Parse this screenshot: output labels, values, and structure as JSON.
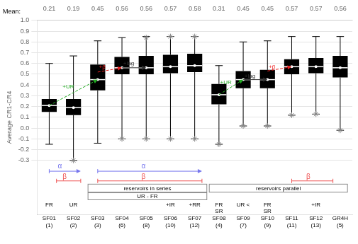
{
  "chart_data": {
    "type": "box",
    "categories": [
      "SF01",
      "SF02",
      "SF03",
      "SF04",
      "SF05",
      "SF06",
      "SF07",
      "SF08",
      "SF09",
      "SF10",
      "SF11",
      "SF12",
      "GR4H"
    ],
    "boxes": [
      {
        "q1": 0.15,
        "med": 0.21,
        "q3": 0.27,
        "whislo": -0.15,
        "whishi": 0.6
      },
      {
        "q1": 0.12,
        "med": 0.19,
        "q3": 0.27,
        "whislo": -0.3,
        "whishi": 0.67
      },
      {
        "q1": 0.35,
        "med": 0.45,
        "q3": 0.59,
        "whislo": -0.14,
        "whishi": 0.81
      },
      {
        "q1": 0.5,
        "med": 0.56,
        "q3": 0.66,
        "whislo": -0.1,
        "whishi": 0.84
      },
      {
        "q1": 0.5,
        "med": 0.56,
        "q3": 0.67,
        "whislo": -0.1,
        "whishi": 0.85
      },
      {
        "q1": 0.51,
        "med": 0.57,
        "q3": 0.68,
        "whislo": -0.1,
        "whishi": 0.85
      },
      {
        "q1": 0.52,
        "med": 0.58,
        "q3": 0.69,
        "whislo": -0.1,
        "whishi": 0.85
      },
      {
        "q1": 0.22,
        "med": 0.31,
        "q3": 0.41,
        "whislo": -0.15,
        "whishi": 0.58
      },
      {
        "q1": 0.37,
        "med": 0.45,
        "q3": 0.53,
        "whislo": 0.02,
        "whishi": 0.8
      },
      {
        "q1": 0.37,
        "med": 0.45,
        "q3": 0.54,
        "whislo": 0.02,
        "whishi": 0.81
      },
      {
        "q1": 0.5,
        "med": 0.57,
        "q3": 0.64,
        "whislo": 0.12,
        "whishi": 0.85
      },
      {
        "q1": 0.51,
        "med": 0.57,
        "q3": 0.65,
        "whislo": 0.13,
        "whishi": 0.85
      },
      {
        "q1": 0.47,
        "med": 0.56,
        "q3": 0.67,
        "whislo": -0.02,
        "whishi": 0.85
      }
    ],
    "color": "#000000",
    "median_color": "#ffffff",
    "whisker_color": "#000000",
    "outliers": {
      "values": [
        [],
        [
          -0.3
        ],
        [],
        [
          -0.1
        ],
        [
          -0.1,
          0.84
        ],
        [
          -0.1,
          0.85
        ],
        [
          -0.1,
          0.85
        ],
        [
          -0.15
        ],
        [
          0.02
        ],
        [
          0.02
        ],
        [
          0.12
        ],
        [
          0.13
        ],
        [
          -0.02
        ]
      ],
      "marker": "star",
      "color": "#888888"
    },
    "ylabel": "Average CR1-CR4",
    "ylim": [
      -0.8,
      1.0
    ],
    "yticks": [
      -0.3,
      -0.2,
      -0.1,
      {
        "value": 0,
        "label": "0.0"
      },
      0.1,
      0.2,
      0.3,
      0.4,
      0.5,
      0.6,
      0.7,
      0.8,
      0.9,
      {
        "value": 1,
        "label": "1.0"
      }
    ],
    "grid": true,
    "means_label": "Mean:",
    "means": [
      0.21,
      0.19,
      0.45,
      0.56,
      0.56,
      0.57,
      0.58,
      0.31,
      0.45,
      0.45,
      0.57,
      0.57,
      0.56
    ],
    "sublabels": [
      "FR",
      "UR",
      null,
      null,
      null,
      "+IR",
      "+RR",
      "FR\nSR",
      "UR <",
      "FR\nSR",
      null,
      "+IR",
      null
    ],
    "numbers": [
      "(1)",
      "(2)",
      "(3)",
      "(6)",
      "(8)",
      "(10)",
      "(12)",
      "(4)",
      "(7)",
      "(9)",
      "(11)",
      "(13)",
      "(5)"
    ],
    "annotations": [
      {
        "type": "arrow",
        "x": [
          1,
          3
        ],
        "y": [
          0.21,
          0.45
        ],
        "color": "#22aa22",
        "line_style": "dashed"
      },
      {
        "type": "text",
        "text": "+UR",
        "x": 1.55,
        "y": 0.37,
        "color": "#22aa22"
      },
      {
        "type": "arrow",
        "x": [
          3,
          4
        ],
        "y": [
          0.52,
          0.56
        ],
        "color": "#ee2222",
        "line_style": "dashed"
      },
      {
        "type": "text",
        "text": "+β",
        "x": 3.05,
        "y": 0.555,
        "color": "#ee2222"
      },
      {
        "type": "arrow",
        "x": [
          4,
          5
        ],
        "y": [
          0.56,
          0.56
        ],
        "color": "#333333",
        "line_style": "solid"
      },
      {
        "type": "text",
        "text": "+lag",
        "x": 4.05,
        "y": 0.585,
        "color": "#333333"
      },
      {
        "type": "arrow",
        "x": [
          8,
          9
        ],
        "y": [
          0.31,
          0.45
        ],
        "color": "#22aa22",
        "line_style": "dashed"
      },
      {
        "type": "text",
        "text": "+UR",
        "x": 8.05,
        "y": 0.41,
        "color": "#22aa22"
      },
      {
        "type": "arrow",
        "x": [
          9,
          10
        ],
        "y": [
          0.45,
          0.45
        ],
        "color": "#333333",
        "line_style": "solid"
      },
      {
        "type": "text",
        "text": "+lag",
        "x": 9.05,
        "y": 0.47,
        "color": "#333333"
      },
      {
        "type": "arrow",
        "x": [
          10,
          11
        ],
        "y": [
          0.53,
          0.57
        ],
        "color": "#ee2222",
        "line_style": "dashed"
      },
      {
        "type": "text",
        "text": "+β",
        "x": 10.05,
        "y": 0.555,
        "color": "#ee2222"
      },
      {
        "type": "span_arrow",
        "x": [
          1.0,
          2.3
        ],
        "y": [
          -0.4,
          -0.4
        ],
        "color": "#7777ee"
      },
      {
        "type": "text",
        "text": "α",
        "x": 1.35,
        "y": -0.375,
        "color": "#7777ee"
      },
      {
        "type": "span_arrow",
        "x": [
          3.0,
          7.3
        ],
        "y": [
          -0.4,
          -0.4
        ],
        "color": "#7777ee"
      },
      {
        "type": "text",
        "text": "α",
        "x": 4.8,
        "y": -0.375,
        "color": "#7777ee"
      },
      {
        "type": "span",
        "x": [
          1.3,
          2.3
        ],
        "y": [
          -0.49,
          -0.49
        ],
        "color": "#ee5555"
      },
      {
        "type": "text",
        "text": "β",
        "x": 1.55,
        "y": -0.472,
        "color": "#ee5555"
      },
      {
        "type": "span",
        "x": [
          3.0,
          7.3
        ],
        "y": [
          -0.49,
          -0.49
        ],
        "color": "#ee5555"
      },
      {
        "type": "text",
        "text": "β",
        "x": 4.8,
        "y": -0.472,
        "color": "#ee5555"
      },
      {
        "type": "span",
        "x": [
          11.0,
          12.7
        ],
        "y": [
          -0.49,
          -0.49
        ],
        "color": "#ee5555"
      },
      {
        "type": "text",
        "text": "β",
        "x": 11.6,
        "y": -0.472,
        "color": "#ee5555"
      },
      {
        "type": "frame",
        "x": [
          2.6,
          7.5
        ],
        "y": [
          -0.595,
          -0.52
        ],
        "text": "reservoirs in series",
        "color": "#888888"
      },
      {
        "type": "frame",
        "x": [
          2.6,
          7.5
        ],
        "y": [
          -0.665,
          -0.6
        ],
        "text": "UR - FR",
        "color": "#888888"
      },
      {
        "type": "frame",
        "x": [
          7.6,
          13.3
        ],
        "y": [
          -0.595,
          -0.52
        ],
        "text": "reservoirs parallel",
        "color": "#888888"
      }
    ]
  }
}
